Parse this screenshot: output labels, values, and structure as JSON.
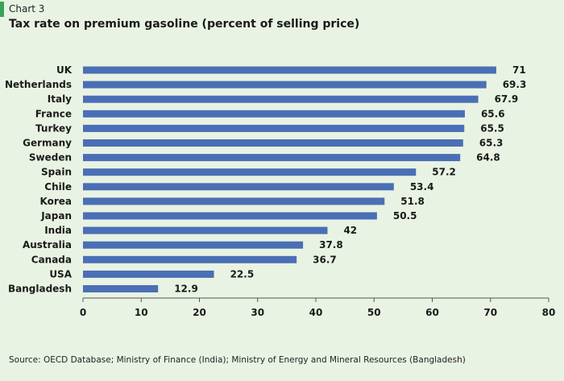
{
  "header": {
    "chart_label": "Chart 3",
    "title": "Tax rate on premium gasoline (percent of selling price)"
  },
  "source": "Source: OECD Database; Ministry of Finance (India); Ministry of Energy and Mineral Resources (Bangladesh)",
  "colors": {
    "background": "#e9f3e3",
    "bar": "#4a6fb5",
    "accent": "#3aa35a"
  },
  "chart_data": {
    "type": "bar",
    "orientation": "horizontal",
    "title": "Tax rate on premium gasoline (percent of selling price)",
    "xlabel": "",
    "ylabel": "",
    "xlim": [
      0,
      80
    ],
    "xticks": [
      0,
      10,
      20,
      30,
      40,
      50,
      60,
      70,
      80
    ],
    "grid": false,
    "categories": [
      "UK",
      "Netherlands",
      "Italy",
      "France",
      "Turkey",
      "Germany",
      "Sweden",
      "Spain",
      "Chile",
      "Korea",
      "Japan",
      "India",
      "Australia",
      "Canada",
      "USA",
      "Bangladesh"
    ],
    "values": [
      71,
      69.3,
      67.9,
      65.6,
      65.5,
      65.3,
      64.8,
      57.2,
      53.4,
      51.8,
      50.5,
      42,
      37.8,
      36.7,
      22.5,
      12.9
    ],
    "value_labels": [
      "71",
      "69.3",
      "67.9",
      "65.6",
      "65.5",
      "65.3",
      "64.8",
      "57.2",
      "53.4",
      "51.8",
      "50.5",
      "42",
      "37.8",
      "36.7",
      "22.5",
      "12.9"
    ]
  }
}
